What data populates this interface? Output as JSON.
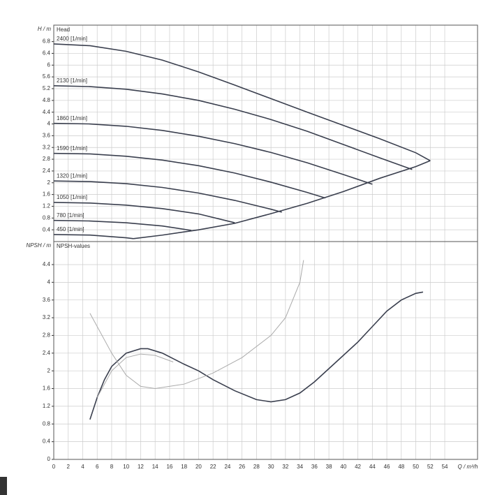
{
  "chart_data": [
    {
      "type": "line",
      "title": "Head",
      "y_label": "H / m",
      "xlim": [
        0,
        58.53
      ],
      "xticks": [
        0,
        2,
        4,
        6,
        8,
        10,
        12,
        14,
        16,
        18,
        20,
        22,
        24,
        26,
        28,
        30,
        32,
        34,
        36,
        38,
        40,
        42,
        44,
        46,
        48,
        50,
        52,
        54
      ],
      "ylim": [
        0,
        7.36
      ],
      "yticks": [
        0.4,
        0.8,
        1.2,
        1.6,
        2,
        2.4,
        2.8,
        3.2,
        3.6,
        4,
        4.4,
        4.8,
        5.2,
        5.6,
        6,
        6.4,
        6.8
      ],
      "grid": true,
      "series": [
        {
          "name": "2400 [1/min]",
          "color": "#3a3f4e",
          "x": [
            0,
            5,
            10,
            15,
            20,
            25,
            30,
            35,
            40,
            45,
            50,
            52
          ],
          "values": [
            6.72,
            6.66,
            6.47,
            6.17,
            5.77,
            5.32,
            4.86,
            4.4,
            3.95,
            3.5,
            3.02,
            2.75
          ]
        },
        {
          "name": "2130 [1/min]",
          "color": "#3a3f4e",
          "x": [
            0,
            5,
            10,
            15,
            20,
            25,
            30,
            35,
            40,
            45,
            49.5
          ],
          "values": [
            5.3,
            5.27,
            5.18,
            5.02,
            4.8,
            4.5,
            4.15,
            3.75,
            3.3,
            2.85,
            2.45
          ]
        },
        {
          "name": "1860 [1/min]",
          "color": "#3a3f4e",
          "x": [
            0,
            5,
            10,
            15,
            20,
            25,
            30,
            35,
            40,
            44
          ],
          "values": [
            4.02,
            4.0,
            3.92,
            3.78,
            3.58,
            3.33,
            3.03,
            2.68,
            2.28,
            1.95
          ]
        },
        {
          "name": "1590 [1/min]",
          "color": "#3a3f4e",
          "x": [
            0,
            5,
            10,
            15,
            20,
            25,
            30,
            35,
            37.5
          ],
          "values": [
            3.0,
            2.98,
            2.9,
            2.77,
            2.58,
            2.33,
            2.02,
            1.67,
            1.48
          ]
        },
        {
          "name": "1320 [1/min]",
          "color": "#3a3f4e",
          "x": [
            0,
            5,
            10,
            15,
            20,
            25,
            30,
            31.5
          ],
          "values": [
            2.06,
            2.04,
            1.97,
            1.84,
            1.65,
            1.4,
            1.1,
            1.0
          ]
        },
        {
          "name": "1050 [1/min]",
          "color": "#3a3f4e",
          "x": [
            0,
            5,
            10,
            15,
            20,
            25
          ],
          "values": [
            1.33,
            1.31,
            1.24,
            1.12,
            0.94,
            0.64
          ]
        },
        {
          "name": "780 [1/min]",
          "color": "#3a3f4e",
          "x": [
            0,
            5,
            10,
            15,
            19
          ],
          "values": [
            0.72,
            0.7,
            0.64,
            0.53,
            0.38
          ]
        },
        {
          "name": "450 [1/min]",
          "color": "#3a3f4e",
          "x": [
            0,
            5,
            10,
            11
          ],
          "values": [
            0.24,
            0.22,
            0.13,
            0.1
          ]
        },
        {
          "color": "#3a3f4e",
          "x": [
            11,
            15,
            20,
            25,
            30,
            35,
            40,
            45,
            50,
            52
          ],
          "values": [
            0.1,
            0.22,
            0.4,
            0.62,
            0.95,
            1.3,
            1.7,
            2.15,
            2.55,
            2.75
          ]
        }
      ]
    },
    {
      "type": "line",
      "title": "NPSH-values",
      "y_label": "NPSH / m",
      "x_label": "Q / m³/h",
      "xlim": [
        0,
        58.53
      ],
      "xticks": [
        0,
        2,
        4,
        6,
        8,
        10,
        12,
        14,
        16,
        18,
        20,
        22,
        24,
        26,
        28,
        30,
        32,
        34,
        36,
        38,
        40,
        42,
        44,
        46,
        48,
        50,
        52,
        54
      ],
      "ylim": [
        0,
        4.92
      ],
      "yticks": [
        0,
        0.4,
        0.8,
        1.2,
        1.6,
        2,
        2.4,
        2.8,
        3.2,
        3.6,
        4,
        4.4
      ],
      "grid": true,
      "series": [
        {
          "color": "#3a3f4e",
          "x": [
            5,
            6,
            7,
            8,
            10,
            12,
            13,
            15,
            18,
            20,
            22,
            25,
            28,
            30,
            32,
            34,
            36,
            38,
            40,
            42,
            44,
            46,
            48,
            50,
            51
          ],
          "values": [
            0.9,
            1.4,
            1.8,
            2.1,
            2.4,
            2.5,
            2.5,
            2.4,
            2.15,
            2.0,
            1.8,
            1.55,
            1.35,
            1.3,
            1.35,
            1.5,
            1.75,
            2.05,
            2.35,
            2.65,
            3.0,
            3.35,
            3.6,
            3.75,
            3.78
          ]
        },
        {
          "color": "#aaaaaa",
          "x": [
            5,
            8,
            10,
            12,
            14,
            18,
            22,
            26,
            30,
            32,
            34,
            34.5
          ],
          "values": [
            3.3,
            2.4,
            1.9,
            1.65,
            1.6,
            1.7,
            1.95,
            2.3,
            2.8,
            3.2,
            4.0,
            4.5
          ]
        },
        {
          "color": "#aaaaaa",
          "x": [
            6,
            8,
            10,
            12,
            14,
            16.5
          ],
          "values": [
            1.4,
            2.0,
            2.3,
            2.38,
            2.35,
            2.2
          ]
        }
      ]
    }
  ]
}
